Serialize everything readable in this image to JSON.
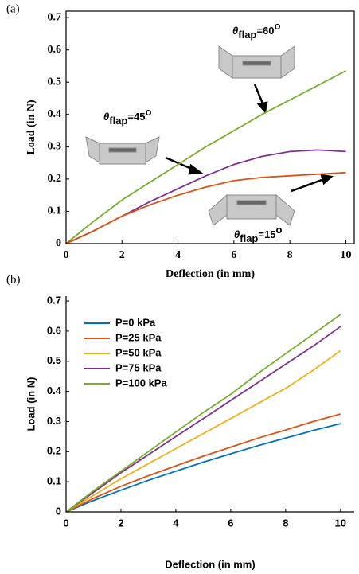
{
  "chart_data": [
    {
      "type": "line",
      "panel_label": "(a)",
      "xlabel": "Deflection (in mm)",
      "ylabel": "Load (in N)",
      "x": [
        0,
        1,
        2,
        3,
        4,
        5,
        6,
        7,
        8,
        9,
        10
      ],
      "series": [
        {
          "color": "#77ac30",
          "values": [
            0,
            0.07,
            0.135,
            0.19,
            0.245,
            0.3,
            0.35,
            0.4,
            0.445,
            0.49,
            0.535
          ]
        },
        {
          "color": "#7e2f8e",
          "values": [
            0,
            0.04,
            0.085,
            0.13,
            0.17,
            0.21,
            0.245,
            0.27,
            0.285,
            0.29,
            0.285
          ]
        },
        {
          "color": "#d95319",
          "values": [
            0,
            0.04,
            0.085,
            0.12,
            0.15,
            0.175,
            0.195,
            0.205,
            0.21,
            0.215,
            0.22
          ]
        }
      ],
      "annotations": [
        {
          "symbol": "θ",
          "sub": "flap",
          "text": "=60",
          "sup": "o"
        },
        {
          "symbol": "θ",
          "sub": "flap",
          "text": "=45",
          "sup": "o"
        },
        {
          "symbol": "θ",
          "sub": "flap",
          "text": "=15",
          "sup": "o"
        }
      ],
      "xlim": [
        0,
        10.3
      ],
      "ylim": [
        0,
        0.72
      ],
      "xticks": [
        0,
        2,
        4,
        6,
        8,
        10
      ],
      "yticks": [
        0,
        0.1,
        0.2,
        0.3,
        0.4,
        0.5,
        0.6,
        0.7
      ],
      "box": true
    },
    {
      "type": "line",
      "panel_label": "(b)",
      "xlabel": "Deflection (in mm)",
      "ylabel": "Load (in N)",
      "x": [
        0,
        1,
        2,
        3,
        4,
        5,
        6,
        7,
        8,
        9,
        10
      ],
      "series": [
        {
          "name": "P=0 kPa",
          "color": "#0072bd",
          "values": [
            0,
            0.038,
            0.072,
            0.105,
            0.135,
            0.165,
            0.193,
            0.22,
            0.245,
            0.27,
            0.293
          ]
        },
        {
          "name": "P=25 kPa",
          "color": "#d95319",
          "values": [
            0,
            0.045,
            0.085,
            0.12,
            0.153,
            0.185,
            0.215,
            0.245,
            0.272,
            0.3,
            0.325
          ]
        },
        {
          "name": "P=50 kPa",
          "color": "#edb120",
          "values": [
            0,
            0.055,
            0.11,
            0.16,
            0.21,
            0.26,
            0.31,
            0.36,
            0.41,
            0.47,
            0.535
          ]
        },
        {
          "name": "P=75 kPa",
          "color": "#7e2f8e",
          "values": [
            0,
            0.065,
            0.13,
            0.19,
            0.25,
            0.31,
            0.37,
            0.43,
            0.49,
            0.55,
            0.615
          ]
        },
        {
          "name": "P=100 kPa",
          "color": "#77ac30",
          "values": [
            0,
            0.07,
            0.135,
            0.2,
            0.265,
            0.33,
            0.39,
            0.46,
            0.525,
            0.59,
            0.655
          ]
        }
      ],
      "xlim": [
        0,
        10.5
      ],
      "ylim": [
        0,
        0.716
      ],
      "xticks": [
        0,
        2,
        4,
        6,
        8,
        10
      ],
      "yticks": [
        0,
        0.1,
        0.2,
        0.3,
        0.4,
        0.5,
        0.6,
        0.7
      ],
      "box": false,
      "legend": "upper left"
    }
  ]
}
